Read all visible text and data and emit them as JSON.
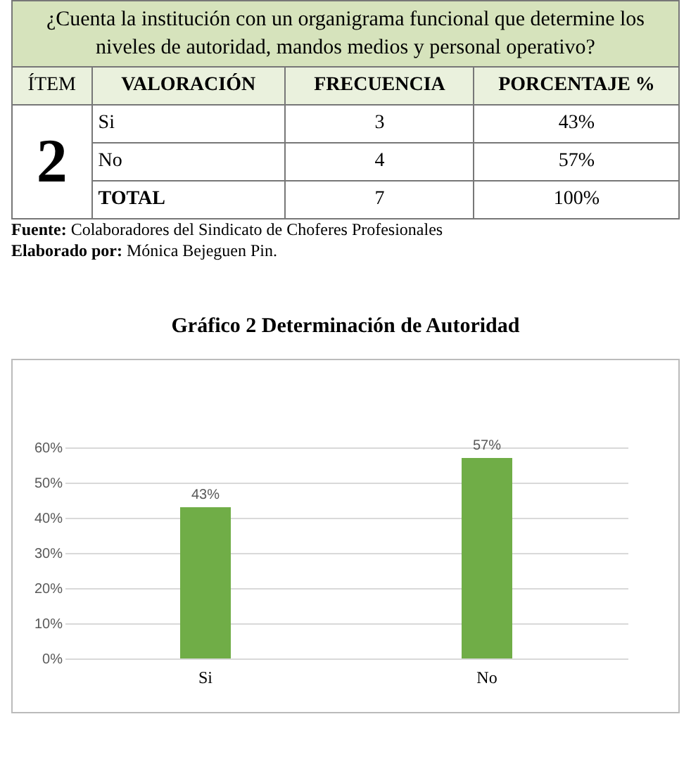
{
  "chart_data": {
    "type": "bar",
    "title": "Gráfico 2 Determinación de Autoridad",
    "subtitle": "¿Cuenta la institución con un organigrama funcional que determine los niveles de autoridad, mandos medios y personal operativo?",
    "annotations": [
      "ÍTEM",
      "VALORACIÓN",
      "FRECUENCIA",
      "PORCENTAJE %",
      "2",
      "Si",
      "3",
      "43%",
      "No",
      "4",
      "57%",
      "TOTAL",
      "7",
      "100%",
      "Fuente: Colaboradores del Sindicato de Choferes Profesionales",
      "Elaborado por: Mónica Bejeguen Pin."
    ],
    "categories": [
      "Si",
      "No"
    ],
    "values": [
      43,
      57
    ],
    "value_labels": [
      "43%",
      "57%"
    ],
    "color": "#70ad47",
    "ylim": [
      0,
      60
    ],
    "yticks": [
      {
        "value": 0,
        "label": "0%"
      },
      {
        "value": 10,
        "label": "10%"
      },
      {
        "value": 20,
        "label": "20%"
      },
      {
        "value": 30,
        "label": "30%"
      },
      {
        "value": 40,
        "label": "40%"
      },
      {
        "value": 50,
        "label": "50%"
      },
      {
        "value": 60,
        "label": "60%"
      }
    ],
    "grid": "y"
  }
}
